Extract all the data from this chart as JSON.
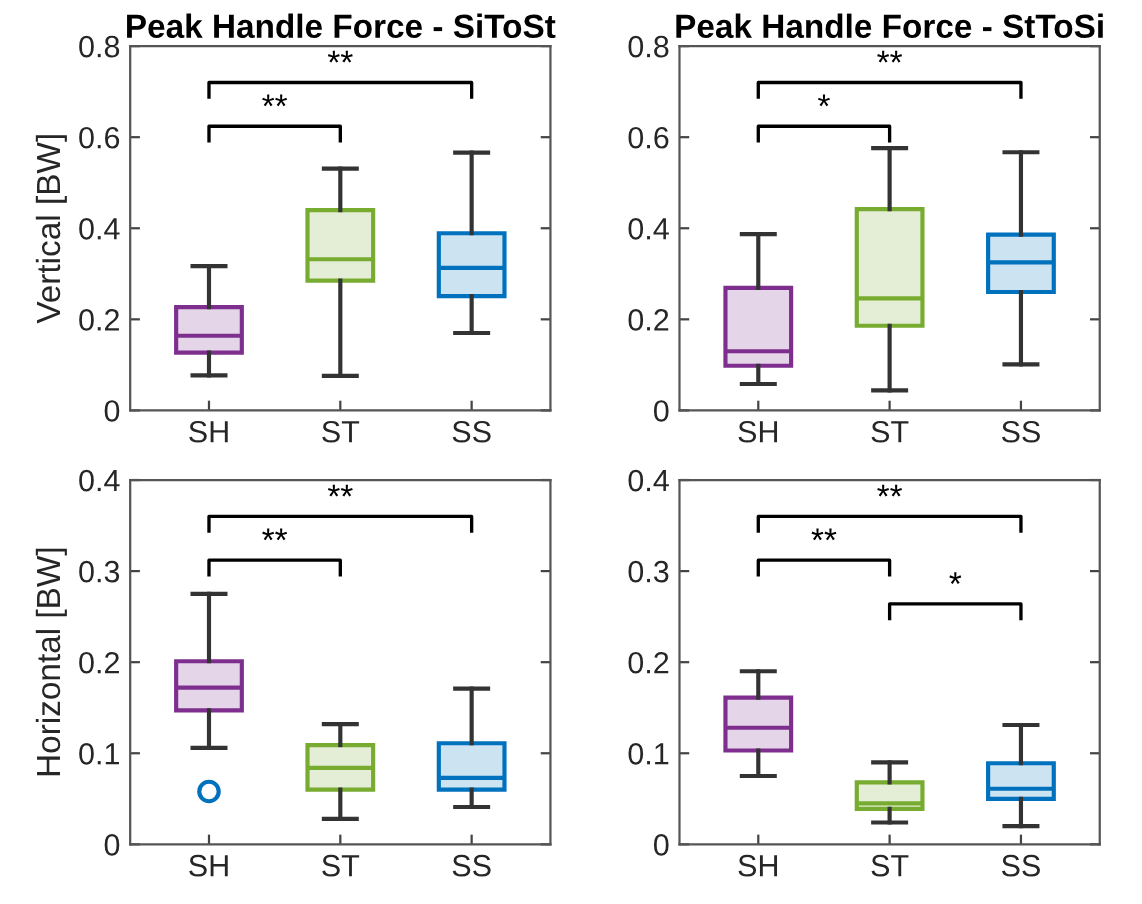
{
  "chart_data": [
    {
      "type": "box",
      "title": "Peak Handle Force - SiToSt",
      "ylabel": "Vertical [BW]",
      "categories": [
        "SH",
        "ST",
        "SS"
      ],
      "colors": [
        "#7e2f8e",
        "#77ac30",
        "#0072bd"
      ],
      "ylim": [
        0,
        0.8
      ],
      "yticks": [
        0,
        0.2,
        0.4,
        0.6,
        0.8
      ],
      "annotations": [
        "**",
        "**"
      ],
      "boxes": [
        {
          "low": 0.077,
          "q1": 0.127,
          "median": 0.164,
          "q3": 0.227,
          "high": 0.317
        },
        {
          "low": 0.076,
          "q1": 0.285,
          "median": 0.332,
          "q3": 0.44,
          "high": 0.531
        },
        {
          "low": 0.17,
          "q1": 0.251,
          "median": 0.313,
          "q3": 0.389,
          "high": 0.566
        }
      ]
    },
    {
      "type": "box",
      "title": "Peak Handle Force - StToSi",
      "categories": [
        "SH",
        "ST",
        "SS"
      ],
      "colors": [
        "#7e2f8e",
        "#77ac30",
        "#0072bd"
      ],
      "ylim": [
        0,
        0.8
      ],
      "yticks": [
        0,
        0.2,
        0.4,
        0.6,
        0.8
      ],
      "annotations": [
        "*",
        "**"
      ],
      "boxes": [
        {
          "low": 0.058,
          "q1": 0.098,
          "median": 0.13,
          "q3": 0.269,
          "high": 0.387
        },
        {
          "low": 0.044,
          "q1": 0.186,
          "median": 0.246,
          "q3": 0.442,
          "high": 0.576
        },
        {
          "low": 0.101,
          "q1": 0.26,
          "median": 0.325,
          "q3": 0.386,
          "high": 0.567
        }
      ]
    },
    {
      "type": "box",
      "ylabel": "Horizontal [BW]",
      "categories": [
        "SH",
        "ST",
        "SS"
      ],
      "colors": [
        "#7e2f8e",
        "#77ac30",
        "#0072bd"
      ],
      "ylim": [
        0,
        0.4
      ],
      "yticks": [
        0,
        0.1,
        0.2,
        0.3,
        0.4
      ],
      "annotations": [
        "**",
        "**"
      ],
      "boxes": [
        {
          "low": 0.106,
          "q1": 0.147,
          "median": 0.172,
          "q3": 0.201,
          "high": 0.275,
          "outliers": [
            0.058
          ]
        },
        {
          "low": 0.028,
          "q1": 0.06,
          "median": 0.084,
          "q3": 0.109,
          "high": 0.132
        },
        {
          "low": 0.041,
          "q1": 0.06,
          "median": 0.073,
          "q3": 0.111,
          "high": 0.171
        }
      ]
    },
    {
      "type": "box",
      "categories": [
        "SH",
        "ST",
        "SS"
      ],
      "colors": [
        "#7e2f8e",
        "#77ac30",
        "#0072bd"
      ],
      "ylim": [
        0,
        0.4
      ],
      "yticks": [
        0,
        0.1,
        0.2,
        0.3,
        0.4
      ],
      "annotations": [
        "**",
        "**",
        "*"
      ],
      "boxes": [
        {
          "low": 0.075,
          "q1": 0.103,
          "median": 0.128,
          "q3": 0.161,
          "high": 0.19
        },
        {
          "low": 0.024,
          "q1": 0.039,
          "median": 0.045,
          "q3": 0.068,
          "high": 0.09
        },
        {
          "low": 0.02,
          "q1": 0.05,
          "median": 0.061,
          "q3": 0.089,
          "high": 0.131
        }
      ]
    }
  ]
}
